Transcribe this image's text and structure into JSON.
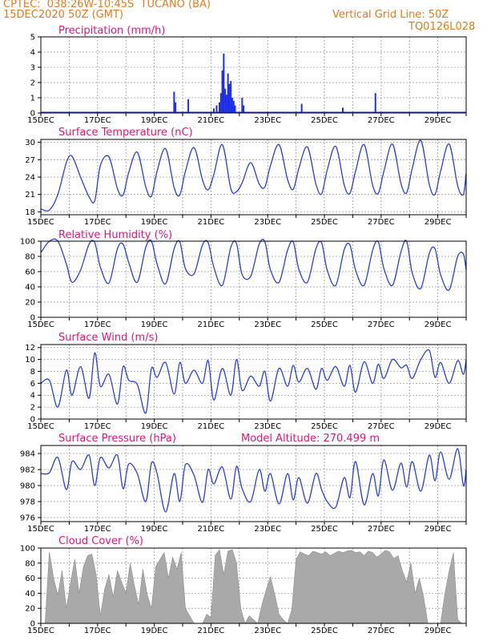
{
  "header": {
    "line1": "CPTEC:  038:26W-10:45S  TUCANO (BA)",
    "line2": "15DEC2020 50Z (GMT)",
    "right1": "Vertical Grid Line: 50Z",
    "right2": "TQ0126L028"
  },
  "colors": {
    "line": "#2a3fe0",
    "bar": "#1f2fe8",
    "cloud": "#a9a9a9",
    "title": "#e0147a",
    "header": "#e07b1e"
  },
  "chart_data": [
    {
      "type": "bar",
      "title": "Precipitation (mm/h)",
      "x_range_days": [
        15,
        30
      ],
      "ylim": [
        0,
        5
      ],
      "yticks": [
        0,
        1,
        2,
        3,
        4,
        5
      ],
      "xticks": [
        "15DEC",
        "17DEC",
        "19DEC",
        "21DEC",
        "23DEC",
        "25DEC",
        "27DEC",
        "29DEC"
      ],
      "x": [
        19.7,
        19.75,
        20.2,
        21.1,
        21.2,
        21.3,
        21.35,
        21.4,
        21.45,
        21.5,
        21.55,
        21.6,
        21.65,
        21.7,
        21.75,
        21.8,
        21.85,
        22.1,
        22.15,
        24.2,
        25.65,
        26.8
      ],
      "values": [
        1.4,
        0.7,
        0.9,
        0.3,
        0.5,
        0.7,
        1.3,
        2.8,
        3.9,
        1.6,
        1.2,
        2.6,
        1.9,
        2.1,
        1.0,
        0.8,
        0.5,
        1.0,
        0.5,
        0.6,
        0.35,
        1.3
      ]
    },
    {
      "type": "line",
      "title": "Surface Temperature (nC)",
      "x_range_days": [
        15,
        30
      ],
      "ylim": [
        17.5,
        30.5
      ],
      "yticks": [
        18,
        21,
        24,
        27,
        30
      ],
      "xticks": [
        "15DEC",
        "17DEC",
        "19DEC",
        "21DEC",
        "23DEC",
        "25DEC",
        "27DEC",
        "29DEC"
      ],
      "x": [
        15.0,
        15.3,
        15.6,
        15.9,
        16.1,
        16.4,
        16.7,
        16.9,
        17.1,
        17.4,
        17.7,
        17.9,
        18.1,
        18.4,
        18.7,
        18.9,
        19.1,
        19.4,
        19.7,
        19.9,
        20.1,
        20.4,
        20.7,
        20.9,
        21.1,
        21.4,
        21.7,
        21.9,
        22.1,
        22.4,
        22.7,
        22.9,
        23.1,
        23.4,
        23.7,
        23.9,
        24.1,
        24.4,
        24.7,
        24.9,
        25.1,
        25.4,
        25.7,
        25.9,
        26.1,
        26.4,
        26.7,
        26.9,
        27.1,
        27.4,
        27.7,
        27.9,
        28.1,
        28.4,
        28.7,
        28.9,
        29.1,
        29.4,
        29.7,
        29.9,
        30.0
      ],
      "values": [
        18.5,
        18.3,
        21,
        26.5,
        27.6,
        24,
        20.6,
        19.9,
        26,
        27.5,
        22,
        20.9,
        24.8,
        28.3,
        22.3,
        20.7,
        25,
        28.9,
        22.2,
        20.9,
        25,
        29.1,
        23.5,
        21.8,
        24.4,
        29.6,
        22,
        21.5,
        23,
        26.5,
        22.8,
        22.3,
        26,
        29.6,
        23.6,
        21.9,
        25.5,
        29.2,
        22.8,
        21.1,
        25.2,
        29.3,
        22.6,
        21.2,
        25,
        29.6,
        22.6,
        21.2,
        25,
        29.7,
        22.9,
        21.3,
        25.5,
        30.3,
        22.7,
        21.0,
        25,
        29.7,
        22.5,
        21.0,
        24.7
      ]
    },
    {
      "type": "line",
      "title": "Relative Humidity (%)",
      "x_range_days": [
        15,
        30
      ],
      "ylim": [
        0,
        100
      ],
      "yticks": [
        0,
        20,
        40,
        60,
        80,
        100
      ],
      "xticks": [
        "15DEC",
        "17DEC",
        "19DEC",
        "21DEC",
        "23DEC",
        "25DEC",
        "27DEC",
        "29DEC"
      ],
      "x": [
        15.0,
        15.3,
        15.6,
        15.9,
        16.1,
        16.4,
        16.7,
        16.9,
        17.1,
        17.4,
        17.7,
        17.9,
        18.1,
        18.4,
        18.7,
        18.9,
        19.1,
        19.4,
        19.7,
        19.9,
        20.1,
        20.4,
        20.7,
        20.9,
        21.1,
        21.4,
        21.7,
        21.9,
        22.1,
        22.4,
        22.7,
        22.9,
        23.1,
        23.4,
        23.7,
        23.9,
        24.1,
        24.4,
        24.7,
        24.9,
        25.1,
        25.4,
        25.7,
        25.9,
        26.1,
        26.4,
        26.7,
        26.9,
        27.1,
        27.4,
        27.7,
        27.9,
        28.1,
        28.4,
        28.7,
        28.9,
        29.1,
        29.4,
        29.7,
        29.9,
        30.0
      ],
      "values": [
        85,
        100,
        100,
        70,
        46,
        62,
        96,
        98,
        66,
        45,
        90,
        96,
        72,
        46,
        92,
        100,
        70,
        44,
        90,
        99,
        64,
        57,
        95,
        98,
        66,
        42,
        92,
        97,
        56,
        54,
        96,
        99,
        62,
        46,
        88,
        99,
        63,
        46,
        90,
        98,
        62,
        42,
        89,
        95,
        62,
        42,
        88,
        99,
        64,
        42,
        86,
        100,
        58,
        38,
        84,
        90,
        56,
        36,
        80,
        83,
        62
      ]
    },
    {
      "type": "line",
      "title": "Surface Wind (m/s)",
      "x_range_days": [
        15,
        30
      ],
      "ylim": [
        0,
        12.5
      ],
      "yticks": [
        0,
        2,
        4,
        6,
        8,
        10,
        12
      ],
      "xticks": [
        "15DEC",
        "17DEC",
        "19DEC",
        "21DEC",
        "23DEC",
        "25DEC",
        "27DEC",
        "29DEC"
      ],
      "x": [
        15.0,
        15.3,
        15.6,
        15.9,
        16.1,
        16.4,
        16.7,
        16.9,
        17.1,
        17.4,
        17.7,
        17.9,
        18.1,
        18.4,
        18.7,
        18.9,
        19.1,
        19.4,
        19.7,
        19.9,
        20.1,
        20.4,
        20.7,
        20.9,
        21.1,
        21.4,
        21.7,
        21.9,
        22.1,
        22.4,
        22.7,
        22.9,
        23.1,
        23.4,
        23.7,
        23.9,
        24.1,
        24.4,
        24.7,
        24.9,
        25.1,
        25.4,
        25.7,
        25.9,
        26.1,
        26.4,
        26.7,
        26.9,
        27.1,
        27.4,
        27.7,
        27.9,
        28.1,
        28.4,
        28.7,
        28.9,
        29.1,
        29.4,
        29.7,
        29.9,
        30.0
      ],
      "values": [
        6,
        6.5,
        2,
        8.2,
        4,
        8.8,
        3.5,
        11.1,
        5.5,
        7.5,
        2.5,
        8.8,
        6.5,
        5.8,
        1,
        8.5,
        7,
        9.5,
        4.2,
        9.5,
        6,
        8.2,
        6,
        9.8,
        3.2,
        8.5,
        4,
        10,
        4.8,
        7.2,
        5.5,
        8,
        3,
        8.5,
        5.5,
        9,
        6.2,
        8.5,
        5,
        8.5,
        6.5,
        8.8,
        5.5,
        9,
        4.5,
        9.6,
        6,
        9.2,
        6.8,
        10,
        8.6,
        9,
        6.8,
        10,
        11.5,
        7,
        9.5,
        6,
        9.8,
        7.5,
        10
      ]
    },
    {
      "type": "line",
      "title": "Surface Pressure (hPa)",
      "annotation": "Model Altitude: 270.499 m",
      "x_range_days": [
        15,
        30
      ],
      "ylim": [
        975.5,
        985
      ],
      "yticks": [
        976,
        978,
        980,
        982,
        984
      ],
      "xticks": [
        "15DEC",
        "17DEC",
        "19DEC",
        "21DEC",
        "23DEC",
        "25DEC",
        "27DEC",
        "29DEC"
      ],
      "x": [
        15.0,
        15.3,
        15.6,
        15.9,
        16.1,
        16.4,
        16.7,
        16.9,
        17.1,
        17.4,
        17.7,
        17.9,
        18.1,
        18.4,
        18.7,
        18.9,
        19.1,
        19.4,
        19.7,
        19.9,
        20.1,
        20.4,
        20.7,
        20.9,
        21.1,
        21.4,
        21.7,
        21.9,
        22.1,
        22.4,
        22.7,
        22.9,
        23.1,
        23.4,
        23.7,
        23.9,
        24.1,
        24.4,
        24.7,
        24.9,
        25.1,
        25.4,
        25.7,
        25.9,
        26.1,
        26.4,
        26.7,
        26.9,
        27.1,
        27.4,
        27.7,
        27.9,
        28.1,
        28.4,
        28.7,
        28.9,
        29.1,
        29.4,
        29.7,
        29.9,
        30.0
      ],
      "values": [
        981.5,
        981.6,
        983.5,
        979.5,
        983,
        982,
        983.8,
        980,
        983.5,
        982.2,
        983.8,
        979.6,
        982.7,
        981.5,
        978,
        982.8,
        981.5,
        976.7,
        981.5,
        978,
        982.6,
        981.3,
        977.9,
        982,
        980.2,
        982.3,
        978.3,
        982.4,
        979.6,
        978,
        982,
        979.3,
        981.5,
        977.7,
        981.5,
        978.2,
        981,
        977.8,
        981.5,
        979.5,
        978,
        977.3,
        981,
        978.5,
        983,
        977.6,
        981.5,
        978.7,
        983.2,
        979.4,
        982.8,
        979.8,
        983,
        979.3,
        983.8,
        980.6,
        984.2,
        980.8,
        984.6,
        980,
        982
      ]
    },
    {
      "type": "area",
      "title": "Cloud Cover (%)",
      "x_range_days": [
        15,
        30
      ],
      "ylim": [
        0,
        100
      ],
      "yticks": [
        0,
        20,
        40,
        60,
        80,
        100
      ],
      "xticks": [
        "15DEC",
        "17DEC",
        "19DEC",
        "21DEC",
        "23DEC",
        "25DEC",
        "27DEC",
        "29DEC"
      ],
      "x": [
        15.0,
        15.15,
        15.3,
        15.45,
        15.6,
        15.75,
        15.9,
        16.05,
        16.2,
        16.35,
        16.5,
        16.65,
        16.8,
        16.95,
        17.1,
        17.25,
        17.4,
        17.55,
        17.7,
        17.85,
        18.0,
        18.15,
        18.3,
        18.45,
        18.6,
        18.75,
        18.9,
        19.05,
        19.2,
        19.35,
        19.5,
        19.65,
        19.8,
        19.95,
        20.1,
        20.25,
        20.4,
        20.55,
        20.7,
        20.85,
        21.0,
        21.15,
        21.3,
        21.45,
        21.6,
        21.75,
        21.9,
        22.05,
        22.2,
        22.35,
        22.5,
        22.65,
        22.8,
        22.95,
        23.1,
        23.25,
        23.4,
        23.55,
        23.7,
        23.85,
        24.0,
        24.15,
        24.3,
        24.45,
        24.6,
        24.75,
        24.9,
        25.05,
        25.2,
        25.35,
        25.5,
        25.65,
        25.8,
        25.95,
        26.1,
        26.25,
        26.4,
        26.55,
        26.7,
        26.85,
        27.0,
        27.15,
        27.3,
        27.45,
        27.6,
        27.75,
        27.9,
        28.05,
        28.2,
        28.35,
        28.5,
        28.65,
        28.8,
        28.95,
        29.1,
        29.25,
        29.4,
        29.55,
        29.7,
        29.85,
        30.0
      ],
      "values": [
        0,
        0,
        95,
        60,
        38,
        70,
        20,
        55,
        85,
        40,
        75,
        90,
        92,
        65,
        10,
        45,
        65,
        35,
        70,
        55,
        40,
        80,
        50,
        25,
        72,
        38,
        20,
        75,
        85,
        94,
        60,
        88,
        72,
        94,
        20,
        10,
        0,
        0,
        0,
        12,
        8,
        90,
        98,
        65,
        96,
        98,
        80,
        20,
        0,
        10,
        5,
        0,
        25,
        45,
        62,
        38,
        12,
        5,
        0,
        18,
        85,
        95,
        92,
        90,
        96,
        94,
        92,
        95,
        90,
        93,
        96,
        94,
        96,
        97,
        94,
        95,
        90,
        96,
        94,
        88,
        92,
        97,
        95,
        86,
        90,
        70,
        55,
        80,
        40,
        60,
        35,
        0,
        0,
        0,
        0,
        40,
        70,
        94,
        5,
        0,
        0
      ]
    }
  ]
}
